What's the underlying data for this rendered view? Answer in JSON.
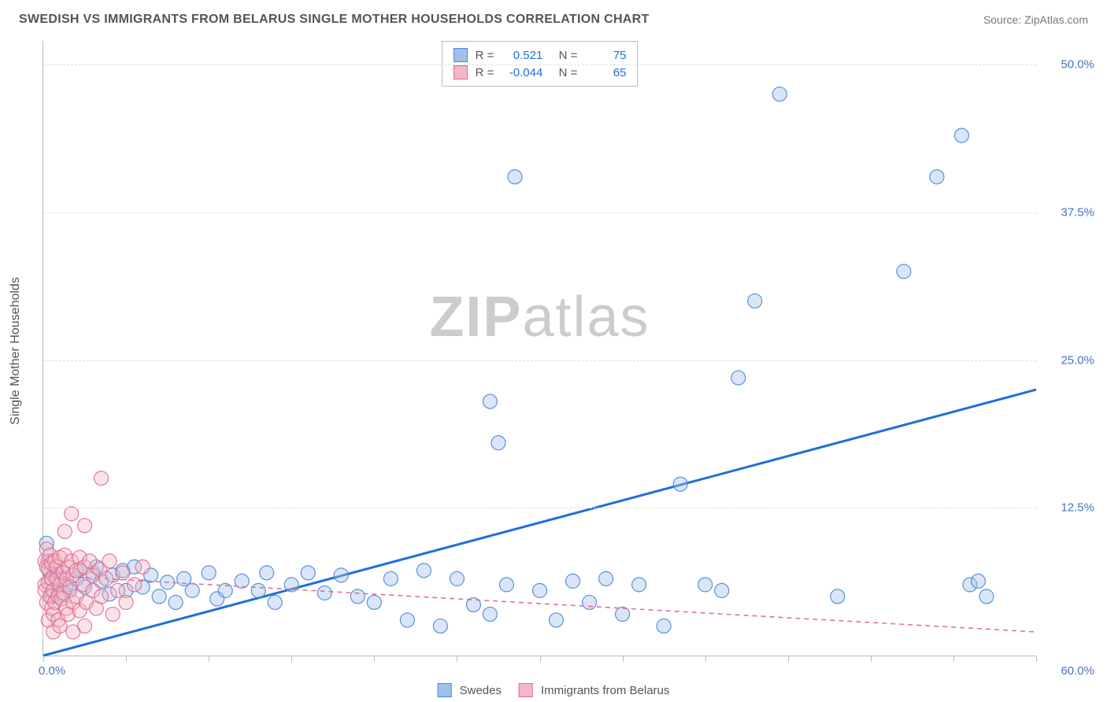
{
  "title": "SWEDISH VS IMMIGRANTS FROM BELARUS SINGLE MOTHER HOUSEHOLDS CORRELATION CHART",
  "source": "Source: ZipAtlas.com",
  "watermark": {
    "bold": "ZIP",
    "light": "atlas"
  },
  "ylabel": "Single Mother Households",
  "chart": {
    "type": "scatter",
    "background_color": "#ffffff",
    "grid_color": "#dddddd",
    "axis_color": "#bbbbbb",
    "xlim": [
      0,
      60
    ],
    "ylim": [
      0,
      52
    ],
    "xticks": [
      0,
      5,
      10,
      15,
      20,
      25,
      30,
      35,
      40,
      45,
      50,
      55,
      60
    ],
    "yticks": [
      12.5,
      25.0,
      37.5,
      50.0
    ],
    "ytick_labels": [
      "12.5%",
      "25.0%",
      "37.5%",
      "50.0%"
    ],
    "xtick_labels": {
      "start": "0.0%",
      "end": "60.0%"
    },
    "marker_radius": 9,
    "marker_opacity": 0.4,
    "marker_stroke_opacity": 0.9,
    "series": [
      {
        "name": "Swedes",
        "color_fill": "#9fc1ea",
        "color_stroke": "#4a86d8",
        "R": "0.521",
        "N": "75",
        "trend": {
          "x1": 0,
          "y1": 0,
          "x2": 60,
          "y2": 22.5,
          "color": "#1f6fd8",
          "width": 3,
          "dash": "none"
        },
        "points": [
          [
            0.2,
            9.5
          ],
          [
            0.3,
            8.0
          ],
          [
            0.4,
            7.0
          ],
          [
            0.5,
            6.2
          ],
          [
            0.5,
            5.0
          ],
          [
            0.6,
            6.8
          ],
          [
            0.8,
            7.2
          ],
          [
            1.0,
            6.0
          ],
          [
            1.0,
            5.2
          ],
          [
            1.2,
            7.0
          ],
          [
            1.4,
            6.0
          ],
          [
            1.6,
            5.5
          ],
          [
            2.0,
            6.5
          ],
          [
            2.2,
            7.3
          ],
          [
            2.5,
            5.8
          ],
          [
            3.0,
            7.0
          ],
          [
            3.2,
            7.5
          ],
          [
            3.5,
            6.3
          ],
          [
            4.0,
            5.2
          ],
          [
            4.2,
            6.8
          ],
          [
            4.8,
            7.2
          ],
          [
            5.0,
            5.5
          ],
          [
            5.5,
            7.5
          ],
          [
            6.0,
            5.8
          ],
          [
            6.5,
            6.8
          ],
          [
            7.0,
            5.0
          ],
          [
            7.5,
            6.2
          ],
          [
            8.0,
            4.5
          ],
          [
            8.5,
            6.5
          ],
          [
            9.0,
            5.5
          ],
          [
            10.0,
            7.0
          ],
          [
            10.5,
            4.8
          ],
          [
            11.0,
            5.5
          ],
          [
            12.0,
            6.3
          ],
          [
            13.0,
            5.5
          ],
          [
            13.5,
            7.0
          ],
          [
            14.0,
            4.5
          ],
          [
            15.0,
            6.0
          ],
          [
            16.0,
            7.0
          ],
          [
            17.0,
            5.3
          ],
          [
            18.0,
            6.8
          ],
          [
            19.0,
            5.0
          ],
          [
            20.0,
            4.5
          ],
          [
            21.0,
            6.5
          ],
          [
            22.0,
            3.0
          ],
          [
            23.0,
            7.2
          ],
          [
            24.0,
            2.5
          ],
          [
            25.0,
            6.5
          ],
          [
            26.0,
            4.3
          ],
          [
            27.0,
            3.5
          ],
          [
            27.5,
            18.0
          ],
          [
            28.0,
            6.0
          ],
          [
            27.0,
            21.5
          ],
          [
            28.5,
            40.5
          ],
          [
            30.0,
            5.5
          ],
          [
            31.0,
            3.0
          ],
          [
            32.0,
            6.3
          ],
          [
            33.0,
            4.5
          ],
          [
            34.0,
            6.5
          ],
          [
            35.0,
            3.5
          ],
          [
            36.0,
            6.0
          ],
          [
            37.5,
            2.5
          ],
          [
            38.5,
            14.5
          ],
          [
            40.0,
            6.0
          ],
          [
            41.0,
            5.5
          ],
          [
            42.0,
            23.5
          ],
          [
            43.0,
            30.0
          ],
          [
            44.5,
            47.5
          ],
          [
            48.0,
            5.0
          ],
          [
            52.0,
            32.5
          ],
          [
            54.0,
            40.5
          ],
          [
            55.5,
            44.0
          ],
          [
            56.0,
            6.0
          ],
          [
            57.0,
            5.0
          ],
          [
            56.5,
            6.3
          ]
        ]
      },
      {
        "name": "Immigrants from Belarus",
        "color_fill": "#f3b8c6",
        "color_stroke": "#e26a8f",
        "R": "-0.044",
        "N": "65",
        "trend": {
          "x1": 0,
          "y1": 6.8,
          "x2": 60,
          "y2": 2.0,
          "color": "#e26a8f",
          "width": 1.5,
          "dash": "6,5"
        },
        "points": [
          [
            0.1,
            8.0
          ],
          [
            0.1,
            6.0
          ],
          [
            0.1,
            5.5
          ],
          [
            0.2,
            7.5
          ],
          [
            0.2,
            4.5
          ],
          [
            0.2,
            9.0
          ],
          [
            0.3,
            3.0
          ],
          [
            0.3,
            6.2
          ],
          [
            0.3,
            7.3
          ],
          [
            0.4,
            5.0
          ],
          [
            0.4,
            8.5
          ],
          [
            0.5,
            4.0
          ],
          [
            0.5,
            6.5
          ],
          [
            0.5,
            7.8
          ],
          [
            0.6,
            3.5
          ],
          [
            0.6,
            5.5
          ],
          [
            0.7,
            8.0
          ],
          [
            0.7,
            4.5
          ],
          [
            0.8,
            6.5
          ],
          [
            0.8,
            7.5
          ],
          [
            0.9,
            5.0
          ],
          [
            0.9,
            3.0
          ],
          [
            1.0,
            8.3
          ],
          [
            1.0,
            6.0
          ],
          [
            1.1,
            4.8
          ],
          [
            1.2,
            7.0
          ],
          [
            1.2,
            5.3
          ],
          [
            1.3,
            8.5
          ],
          [
            1.4,
            4.0
          ],
          [
            1.4,
            6.5
          ],
          [
            1.5,
            7.5
          ],
          [
            1.5,
            3.5
          ],
          [
            1.6,
            5.8
          ],
          [
            1.7,
            8.0
          ],
          [
            1.8,
            4.5
          ],
          [
            1.8,
            6.8
          ],
          [
            2.0,
            7.2
          ],
          [
            2.0,
            5.0
          ],
          [
            2.2,
            8.3
          ],
          [
            2.2,
            3.8
          ],
          [
            2.4,
            6.0
          ],
          [
            2.5,
            7.5
          ],
          [
            2.6,
            4.5
          ],
          [
            2.8,
            8.0
          ],
          [
            3.0,
            5.5
          ],
          [
            3.0,
            6.8
          ],
          [
            3.2,
            4.0
          ],
          [
            3.4,
            7.3
          ],
          [
            3.5,
            5.0
          ],
          [
            3.8,
            6.5
          ],
          [
            4.0,
            8.0
          ],
          [
            4.2,
            3.5
          ],
          [
            4.5,
            5.5
          ],
          [
            4.8,
            7.0
          ],
          [
            5.0,
            4.5
          ],
          [
            5.5,
            6.0
          ],
          [
            6.0,
            7.5
          ],
          [
            1.3,
            10.5
          ],
          [
            1.7,
            12.0
          ],
          [
            2.5,
            11.0
          ],
          [
            3.5,
            15.0
          ],
          [
            0.6,
            2.0
          ],
          [
            1.0,
            2.5
          ],
          [
            1.8,
            2.0
          ],
          [
            2.5,
            2.5
          ]
        ]
      }
    ]
  },
  "stats_labels": {
    "R": "R =",
    "N": "N ="
  },
  "legend_labels": [
    "Swedes",
    "Immigrants from Belarus"
  ]
}
